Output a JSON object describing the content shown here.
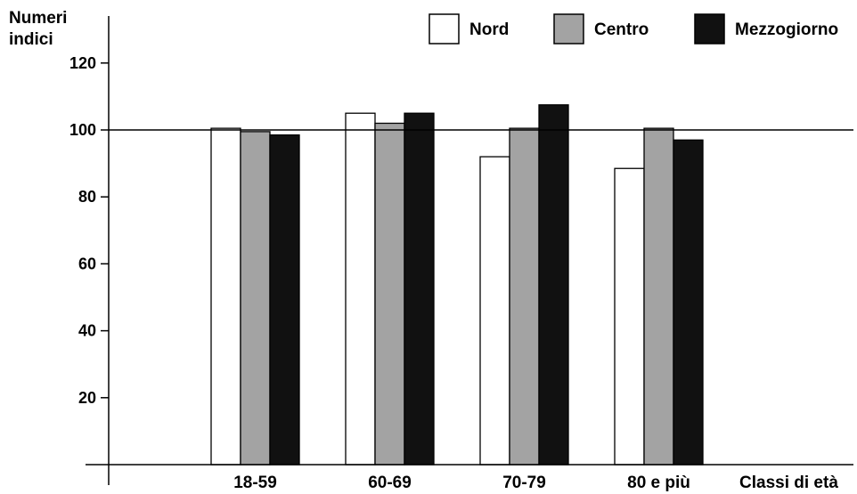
{
  "chart_data": {
    "type": "bar",
    "ylabel_line1": "Numeri",
    "ylabel_line2": "indici",
    "xlabel": "Classi di età",
    "categories": [
      "18-59",
      "60-69",
      "70-79",
      "80 e più"
    ],
    "series": [
      {
        "name": "Nord",
        "color": "#ffffff",
        "values": [
          100.5,
          105,
          92,
          88.5
        ]
      },
      {
        "name": "Centro",
        "color": "#a3a3a3",
        "values": [
          99.5,
          102,
          100.5,
          100.5
        ]
      },
      {
        "name": "Mezzogiorno",
        "color": "#111111",
        "values": [
          98.5,
          105,
          107.5,
          97
        ]
      }
    ],
    "yticks": [
      20,
      40,
      60,
      80,
      100,
      120
    ],
    "ylim": [
      0,
      135
    ],
    "reference_line": 100,
    "legend_position": "top-right",
    "grid": false
  }
}
